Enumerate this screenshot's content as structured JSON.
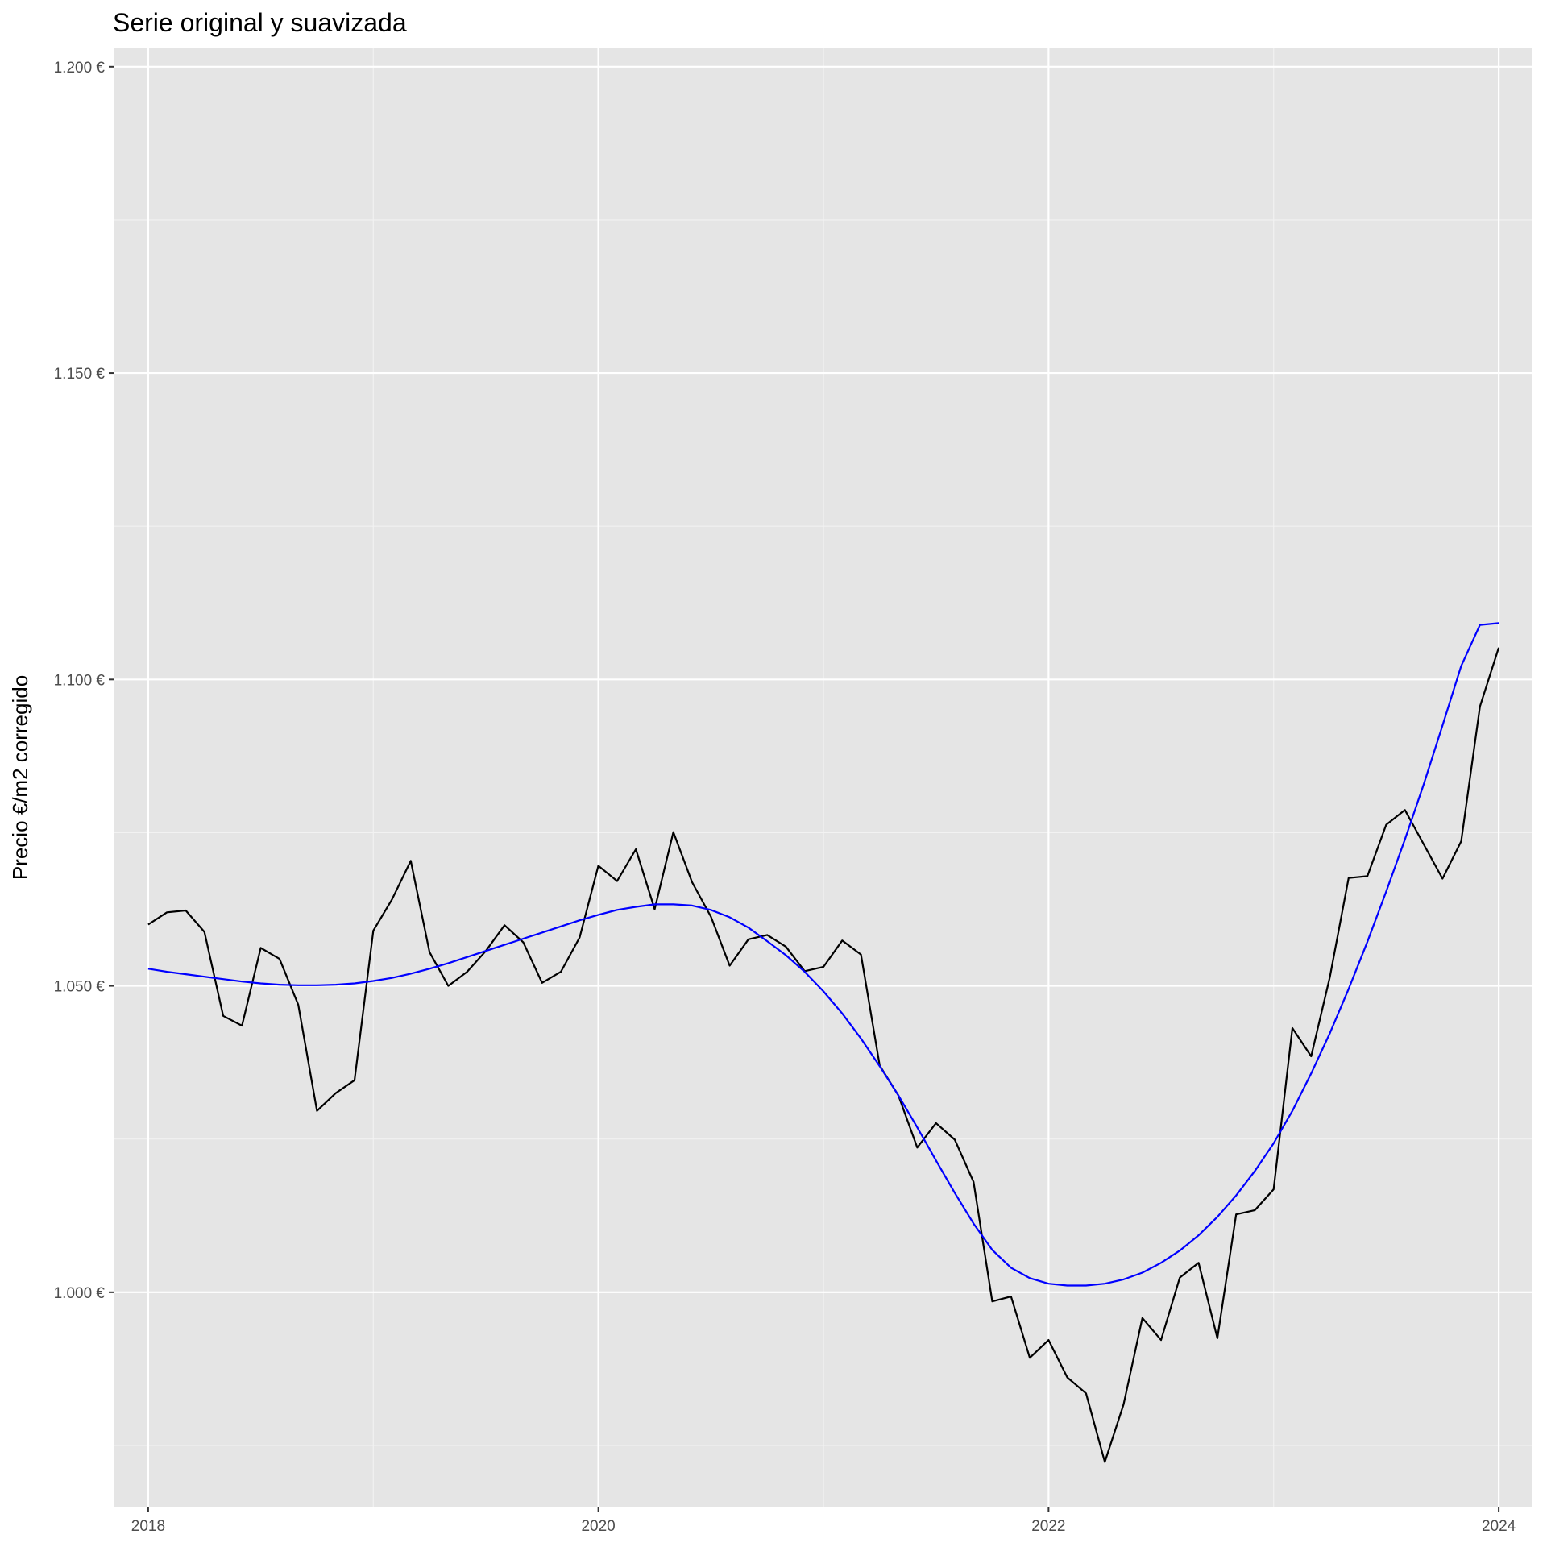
{
  "chart_data": {
    "type": "line",
    "title": "Serie original y suavizada",
    "xlabel": "",
    "ylabel": "Precio €/m2 corregido",
    "xlim": [
      2017.85,
      2024.15
    ],
    "ylim": [
      965,
      1203
    ],
    "x_ticks": [
      2018,
      2020,
      2022,
      2024
    ],
    "x_tick_labels": [
      "2018",
      "2020",
      "2022",
      "2024"
    ],
    "y_ticks": [
      1000,
      1050,
      1100,
      1150,
      1200
    ],
    "y_tick_labels": [
      "1.000 €",
      "1.050 €",
      "1.100 €",
      "1.150 €",
      "1.200 €"
    ],
    "grid": true,
    "series": [
      {
        "color": "#000000",
        "x": [
          2018,
          2018.0833,
          2018.1667,
          2018.25,
          2018.3333,
          2018.4167,
          2018.5,
          2018.5833,
          2018.6667,
          2018.75,
          2018.8333,
          2018.9167,
          2019,
          2019.0833,
          2019.1667,
          2019.25,
          2019.3333,
          2019.4167,
          2019.5,
          2019.5833,
          2019.6667,
          2019.75,
          2019.8333,
          2019.9167,
          2020,
          2020.0833,
          2020.1667,
          2020.25,
          2020.3333,
          2020.4167,
          2020.5,
          2020.5833,
          2020.6667,
          2020.75,
          2020.8333,
          2020.9167,
          2021,
          2021.0833,
          2021.1667,
          2021.25,
          2021.3333,
          2021.4167,
          2021.5,
          2021.5833,
          2021.6667,
          2021.75,
          2021.8333,
          2021.9167,
          2022,
          2022.0833,
          2022.1667,
          2022.25,
          2022.3333,
          2022.4167,
          2022.5,
          2022.5833,
          2022.6667,
          2022.75,
          2022.8333,
          2022.9167,
          2023,
          2023.0833,
          2023.1667,
          2023.25,
          2023.3333,
          2023.4167,
          2023.5,
          2023.5833,
          2023.6667,
          2023.75,
          2023.8333,
          2023.9167,
          2024
        ],
        "y": [
          1060,
          1062,
          1062.3,
          1058.8,
          1045.1,
          1043.5,
          1056.2,
          1054.4,
          1046.9,
          1029.6,
          1032.5,
          1034.6,
          1059,
          1064.1,
          1070.4,
          1055.5,
          1050,
          1052.3,
          1055.7,
          1059.9,
          1057.1,
          1050.5,
          1052.3,
          1057.9,
          1069.6,
          1067.1,
          1072.3,
          1062.5,
          1075.1,
          1066.9,
          1061.3,
          1053.3,
          1057.6,
          1058.3,
          1056.4,
          1052.4,
          1053.1,
          1057.4,
          1055.1,
          1037,
          1032.1,
          1023.6,
          1027.6,
          1024.9,
          1018,
          998.5,
          999.3,
          989.3,
          992.2,
          986.1,
          983.5,
          972.3,
          981.7,
          995.8,
          992.2,
          1002.4,
          1004.8,
          992.5,
          1012.7,
          1013.4,
          1016.8,
          1043.1,
          1038.5,
          1051.5,
          1067.6,
          1067.9,
          1076.3,
          1078.7,
          1073.1,
          1067.5,
          1073.6,
          1095.6,
          1105.2
        ]
      },
      {
        "color": "#0000ff",
        "x": [
          2018,
          2018.0833,
          2018.1667,
          2018.25,
          2018.3333,
          2018.4167,
          2018.5,
          2018.5833,
          2018.6667,
          2018.75,
          2018.8333,
          2018.9167,
          2019,
          2019.0833,
          2019.1667,
          2019.25,
          2019.3333,
          2019.4167,
          2019.5,
          2019.5833,
          2019.6667,
          2019.75,
          2019.8333,
          2019.9167,
          2020,
          2020.0833,
          2020.1667,
          2020.25,
          2020.3333,
          2020.4167,
          2020.5,
          2020.5833,
          2020.6667,
          2020.75,
          2020.8333,
          2020.9167,
          2021,
          2021.0833,
          2021.1667,
          2021.25,
          2021.3333,
          2021.4167,
          2021.5,
          2021.5833,
          2021.6667,
          2021.75,
          2021.8333,
          2021.9167,
          2022,
          2022.0833,
          2022.1667,
          2022.25,
          2022.3333,
          2022.4167,
          2022.5,
          2022.5833,
          2022.6667,
          2022.75,
          2022.8333,
          2022.9167,
          2023,
          2023.0833,
          2023.1667,
          2023.25,
          2023.3333,
          2023.4167,
          2023.5,
          2023.5833,
          2023.6667,
          2023.75,
          2023.8333,
          2023.9167,
          2024
        ],
        "y": [
          1052.8,
          1052.3,
          1051.9,
          1051.5,
          1051.1,
          1050.7,
          1050.4,
          1050.2,
          1050.1,
          1050.1,
          1050.2,
          1050.4,
          1050.8,
          1051.3,
          1052,
          1052.8,
          1053.7,
          1054.7,
          1055.7,
          1056.7,
          1057.7,
          1058.7,
          1059.7,
          1060.7,
          1061.6,
          1062.4,
          1062.9,
          1063.3,
          1063.3,
          1063.1,
          1062.4,
          1061.2,
          1059.5,
          1057.3,
          1055,
          1052.3,
          1049.1,
          1045.5,
          1041.4,
          1036.9,
          1032.1,
          1026.9,
          1021.5,
          1016.2,
          1011.2,
          1006.9,
          1004,
          1002.3,
          1001.4,
          1001.1,
          1001.1,
          1001.4,
          1002.1,
          1003.2,
          1004.8,
          1006.8,
          1009.3,
          1012.3,
          1015.8,
          1019.8,
          1024.3,
          1029.6,
          1035.7,
          1042.3,
          1049.5,
          1057.2,
          1065.4,
          1073.9,
          1082.9,
          1092.5,
          1102.2,
          1108.9,
          1109.2
        ]
      }
    ]
  }
}
